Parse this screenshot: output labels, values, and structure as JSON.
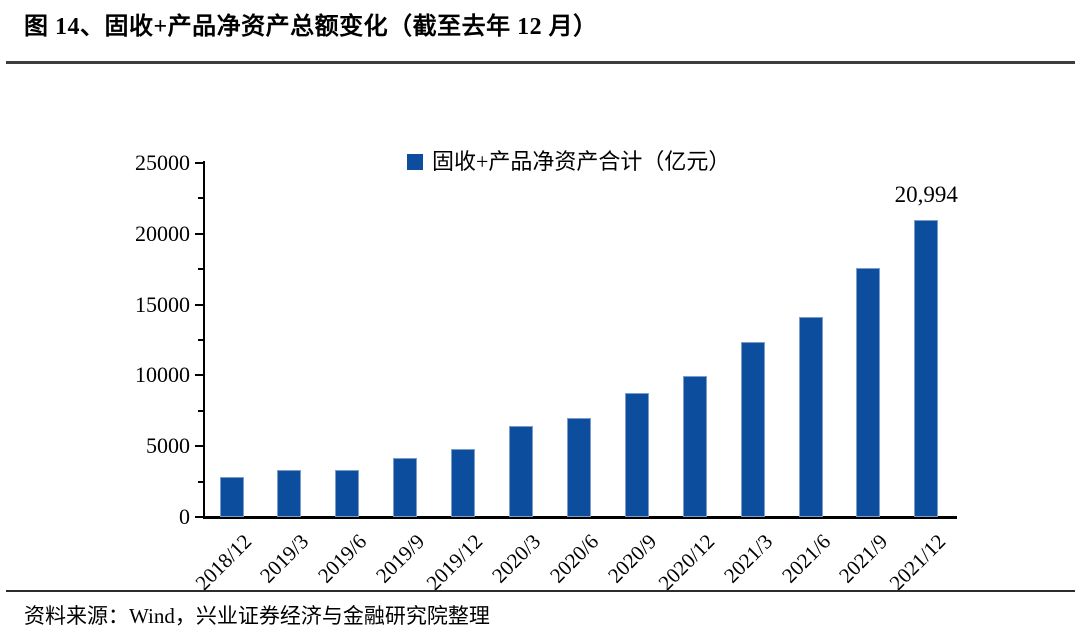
{
  "figure": {
    "title": "图 14、固收+产品净资产总额变化（截至去年 12 月）",
    "source": "资料来源：Wind，兴业证券经济与金融研究院整理"
  },
  "chart_data": {
    "type": "bar",
    "legend_label": "固收+产品净资产合计（亿元）",
    "legend_position": "top",
    "grid": false,
    "bar_color": "#0d4d9d",
    "categories": [
      "2018/12",
      "2019/3",
      "2019/6",
      "2019/9",
      "2019/12",
      "2020/3",
      "2020/6",
      "2020/9",
      "2020/12",
      "2021/3",
      "2021/6",
      "2021/9",
      "2021/12"
    ],
    "values": [
      2800,
      3350,
      3350,
      4150,
      4770,
      6400,
      7000,
      8730,
      9960,
      12350,
      14150,
      17600,
      20994
    ],
    "ylim": [
      0,
      25000
    ],
    "ytick_major": 5000,
    "ytick_minor": 2500,
    "yticks": [
      0,
      5000,
      10000,
      15000,
      20000,
      25000
    ],
    "annotation": {
      "text": "20,994",
      "index": 12
    }
  }
}
